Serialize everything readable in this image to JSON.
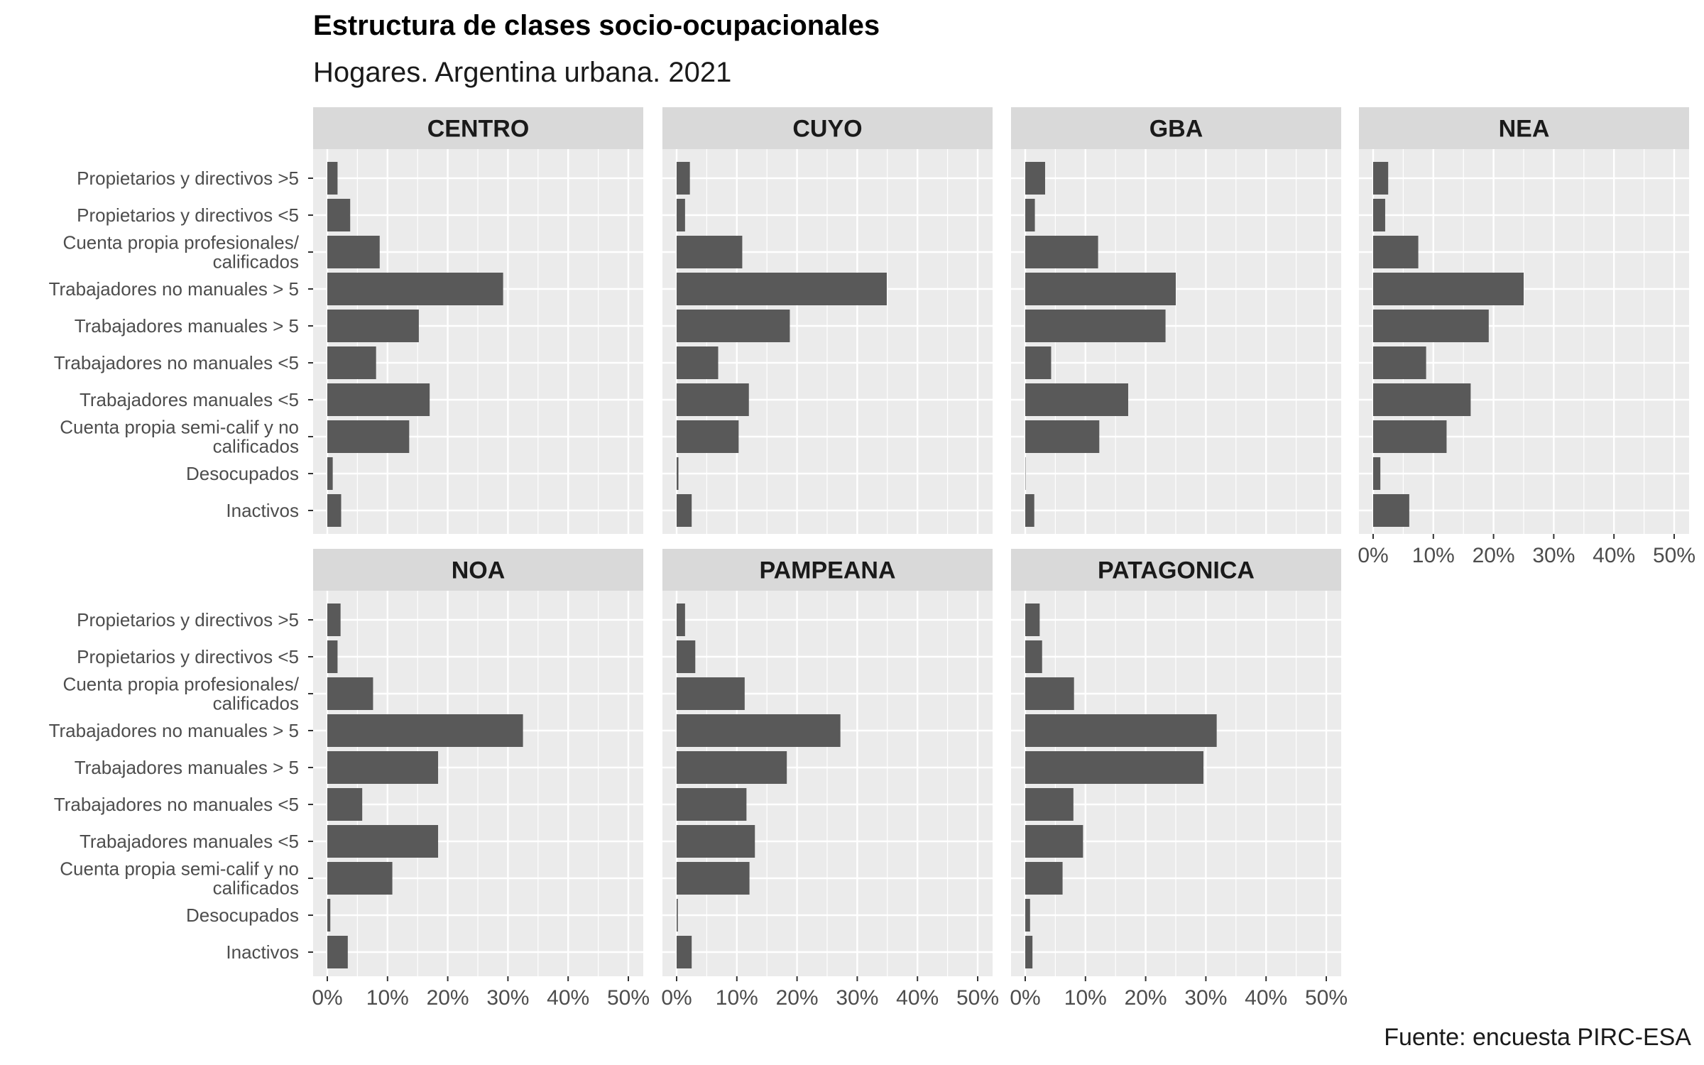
{
  "chart_data": {
    "type": "bar",
    "orientation": "horizontal",
    "title": "Estructura de clases socio-ocupacionales",
    "subtitle": "Hogares. Argentina urbana. 2021",
    "caption": "Fuente: encuesta PIRC-ESA",
    "categories": [
      "Propietarios y directivos >5",
      "Propietarios y directivos <5",
      "Cuenta propia profesionales/\ncalificados",
      "Trabajadores no manuales > 5",
      "Trabajadores manuales > 5",
      "Trabajadores no manuales <5",
      "Trabajadores manuales <5",
      "Cuenta propia semi-calif y no\ncalificados",
      "Desocupados",
      "Inactivos"
    ],
    "xlim": [
      0,
      50
    ],
    "x_ticks": [
      "0%",
      "10%",
      "20%",
      "30%",
      "40%",
      "50%"
    ],
    "grid": true,
    "facets": [
      {
        "name": "CENTRO",
        "values": [
          1.7,
          3.8,
          8.7,
          29.2,
          15.2,
          8.1,
          17.0,
          13.6,
          0.9,
          2.3
        ]
      },
      {
        "name": "CUYO",
        "values": [
          2.2,
          1.4,
          10.9,
          34.9,
          18.8,
          6.9,
          12.0,
          10.3,
          0.3,
          2.5
        ]
      },
      {
        "name": "GBA",
        "values": [
          3.3,
          1.6,
          12.1,
          25.0,
          23.3,
          4.3,
          17.1,
          12.3,
          0.0,
          1.5
        ]
      },
      {
        "name": "NEA",
        "values": [
          2.5,
          2.0,
          7.5,
          25.0,
          19.2,
          8.8,
          16.2,
          12.2,
          1.2,
          6.0
        ]
      },
      {
        "name": "NOA",
        "values": [
          2.2,
          1.7,
          7.6,
          32.5,
          18.4,
          5.8,
          18.4,
          10.8,
          0.5,
          3.4
        ]
      },
      {
        "name": "PAMPEANA",
        "values": [
          1.4,
          3.1,
          11.3,
          27.2,
          18.3,
          11.6,
          13.0,
          12.1,
          0.2,
          2.5
        ]
      },
      {
        "name": "PATAGONICA",
        "values": [
          2.4,
          2.8,
          8.1,
          31.8,
          29.6,
          8.0,
          9.6,
          6.2,
          0.8,
          1.2
        ]
      }
    ],
    "colors": {
      "bar": "#595959",
      "panel": "#ebebeb",
      "strip": "#d9d9d9",
      "grid": "#ffffff",
      "axis_text": "#4d4d4d",
      "strip_text": "#1a1a1a"
    }
  }
}
